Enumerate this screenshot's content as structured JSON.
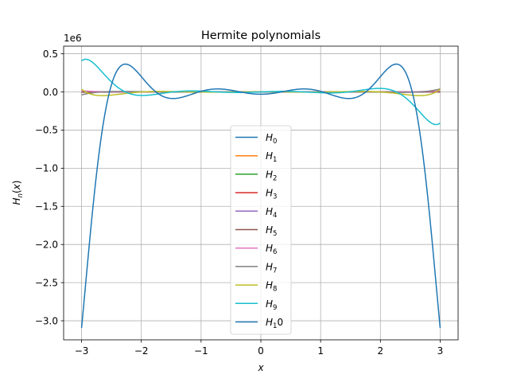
{
  "chart_data": {
    "type": "line",
    "title": "Hermite polynomials",
    "xlabel": "x",
    "ylabel": "H_n(x)",
    "offset_label": "1e6",
    "scale": 1000000,
    "xlim": [
      -3.3,
      3.3
    ],
    "ylim": [
      -3.25,
      0.6
    ],
    "x_ticks": [
      -3,
      -2,
      -1,
      0,
      1,
      2,
      3
    ],
    "x_tick_labels": [
      "−3",
      "−2",
      "−1",
      "0",
      "1",
      "2",
      "3"
    ],
    "y_ticks": [
      0.5,
      0.0,
      -0.5,
      -1.0,
      -1.5,
      -2.0,
      -2.5,
      -3.0
    ],
    "y_tick_labels": [
      "0.5",
      "0.0",
      "−0.5",
      "−1.0",
      "−1.5",
      "−2.0",
      "−2.5",
      "−3.0"
    ],
    "grid": true,
    "legend_position": "center",
    "x_range": [
      -3,
      3
    ],
    "series": [
      {
        "name": "H_0",
        "n": 0,
        "color": "#1f77b4"
      },
      {
        "name": "H_1",
        "n": 1,
        "color": "#ff7f0e"
      },
      {
        "name": "H_2",
        "n": 2,
        "color": "#2ca02c"
      },
      {
        "name": "H_3",
        "n": 3,
        "color": "#d62728"
      },
      {
        "name": "H_4",
        "n": 4,
        "color": "#9467bd"
      },
      {
        "name": "H_5",
        "n": 5,
        "color": "#8c564b"
      },
      {
        "name": "H_6",
        "n": 6,
        "color": "#e377c2"
      },
      {
        "name": "H_7",
        "n": 7,
        "color": "#7f7f7f"
      },
      {
        "name": "H_8",
        "n": 8,
        "color": "#bcbd22"
      },
      {
        "name": "H_9",
        "n": 9,
        "color": "#17becf"
      },
      {
        "name": "H_10",
        "n": 10,
        "color": "#1f77b4"
      }
    ],
    "legend_labels": [
      {
        "base": "H",
        "sub": "0"
      },
      {
        "base": "H",
        "sub": "1"
      },
      {
        "base": "H",
        "sub": "2"
      },
      {
        "base": "H",
        "sub": "3"
      },
      {
        "base": "H",
        "sub": "4"
      },
      {
        "base": "H",
        "sub": "5"
      },
      {
        "base": "H",
        "sub": "6"
      },
      {
        "base": "H",
        "sub": "7"
      },
      {
        "base": "H",
        "sub": "8"
      },
      {
        "base": "H",
        "sub": "9"
      },
      {
        "base": "H",
        "sub": "1",
        "tail": "0"
      }
    ]
  }
}
